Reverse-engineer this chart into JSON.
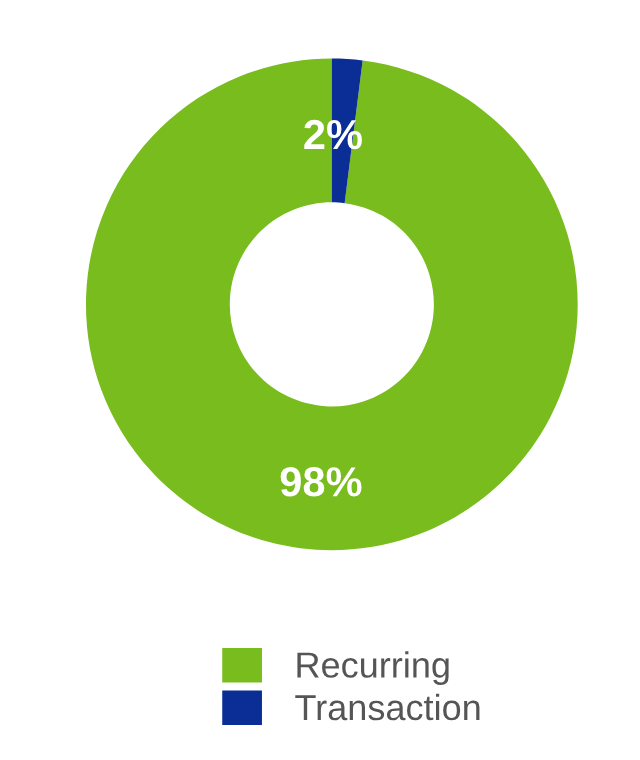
{
  "chart_data": {
    "type": "donut",
    "categories": [
      "Recurring",
      "Transaction"
    ],
    "values": [
      98,
      2
    ],
    "colors": [
      "#78bc1e",
      "#0a2d96"
    ],
    "value_labels": [
      "98%",
      "2%"
    ],
    "legend": "bottom"
  }
}
